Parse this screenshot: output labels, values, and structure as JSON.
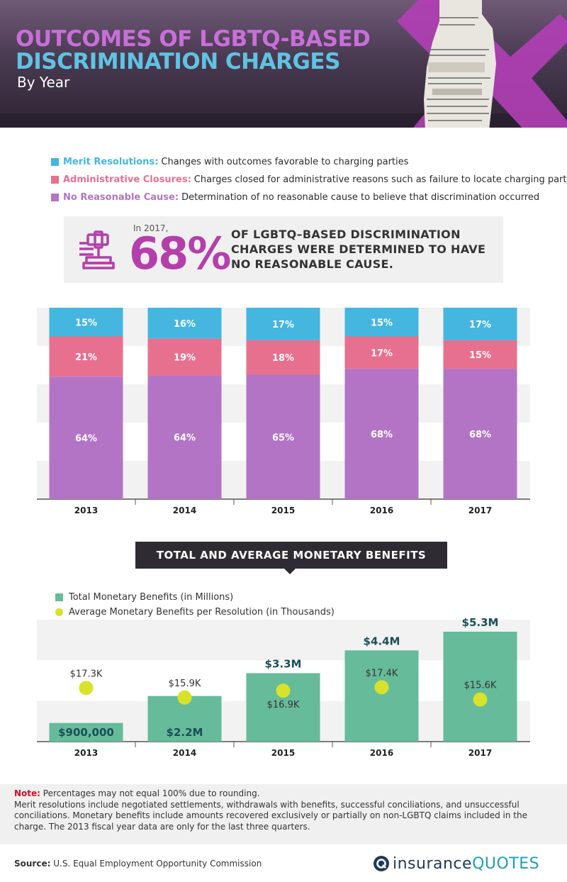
{
  "header": {
    "title_line1": "OUTCOMES OF LGBTQ-BASED",
    "title_line2": "DISCRIMINATION CHARGES",
    "subtitle": "By Year"
  },
  "colors": {
    "merit": "#45b6e0",
    "admin": "#e8708f",
    "no_cause": "#b374c5",
    "total_bar": "#66bb9a",
    "avg_dot": "#d8e22a",
    "title_pink": "#c86fd8",
    "title_blue": "#5fc3e2"
  },
  "legend_top": [
    {
      "key": "Merit Resolutions:",
      "desc": "Changes with outcomes favorable to charging parties",
      "color": "#45b6e0"
    },
    {
      "key": "Administrative Closures:",
      "desc": "Charges closed for administrative reasons such as failure to locate charging party",
      "color": "#e8708f"
    },
    {
      "key": "No Reasonable Cause:",
      "desc": "Determination of no reasonable cause to believe that discrimination occurred",
      "color": "#b374c5"
    }
  ],
  "callout": {
    "prefix": "In 2017,",
    "big": "68%",
    "message": "OF LGBTQ–BASED DISCRIMINATION CHARGES WERE DETERMINED TO HAVE NO REASONABLE CAUSE.",
    "icon": "gavel-icon"
  },
  "banner": "TOTAL AND AVERAGE MONETARY BENEFITS",
  "legend_bottom": [
    {
      "label": "Total Monetary Benefits (in Millions)",
      "color": "#66bb9a",
      "shape": "square"
    },
    {
      "label": "Average Monetary Benefits per Resolution (in Thousands)",
      "color": "#d8e22a",
      "shape": "circle"
    }
  ],
  "chart_data": [
    {
      "type": "bar",
      "stacked": true,
      "categories": [
        "2013",
        "2014",
        "2015",
        "2016",
        "2017"
      ],
      "series": [
        {
          "name": "Merit Resolutions",
          "values": [
            15,
            16,
            17,
            15,
            17
          ],
          "labels": [
            "15%",
            "16%",
            "17%",
            "15%",
            "17%"
          ],
          "color": "#45b6e0"
        },
        {
          "name": "Administrative Closures",
          "values": [
            21,
            19,
            18,
            17,
            15
          ],
          "labels": [
            "21%",
            "19%",
            "18%",
            "17%",
            "15%"
          ],
          "color": "#e8708f"
        },
        {
          "name": "No Reasonable Cause",
          "values": [
            64,
            64,
            65,
            68,
            68
          ],
          "labels": [
            "64%",
            "64%",
            "65%",
            "68%",
            "68%"
          ],
          "color": "#b374c5"
        }
      ],
      "grid": true
    },
    {
      "type": "bar",
      "categories": [
        "2013",
        "2014",
        "2015",
        "2016",
        "2017"
      ],
      "series": [
        {
          "name": "Total Monetary Benefits (in Millions)",
          "values": [
            0.9,
            2.2,
            3.3,
            4.4,
            5.3
          ],
          "labels": [
            "$900,000",
            "$2.2M",
            "$3.3M",
            "$4.4M",
            "$5.3M"
          ],
          "color": "#66bb9a"
        },
        {
          "name": "Average Monetary Benefits per Resolution (in Thousands)",
          "type": "scatter",
          "values": [
            17.3,
            15.9,
            16.9,
            17.4,
            15.6
          ],
          "labels": [
            "$17.3K",
            "$15.9K",
            "$16.9K",
            "$17.4K",
            "$15.6K"
          ],
          "color": "#d8e22a"
        }
      ],
      "ylim": [
        0,
        6
      ],
      "avg_ylim": [
        14,
        19
      ],
      "grid": true
    }
  ],
  "note": {
    "label": "Note:",
    "line1": "Percentages may not equal 100% due to rounding.",
    "body": "Merit resolutions include negotiated settlements, withdrawals with benefits, successful conciliations, and unsuccessful conciliations. Monetary benefits include amounts recovered exclusively or partially on non-LGBTQ claims included in the charge. The 2013 fiscal year data are only for the last three quarters."
  },
  "source": {
    "label": "Source:",
    "text": "U.S. Equal Employment Opportunity Commission"
  },
  "brand": {
    "part1": "insurance",
    "part2": "QUOTES",
    "icon": "insurancequotes-logo-icon"
  }
}
